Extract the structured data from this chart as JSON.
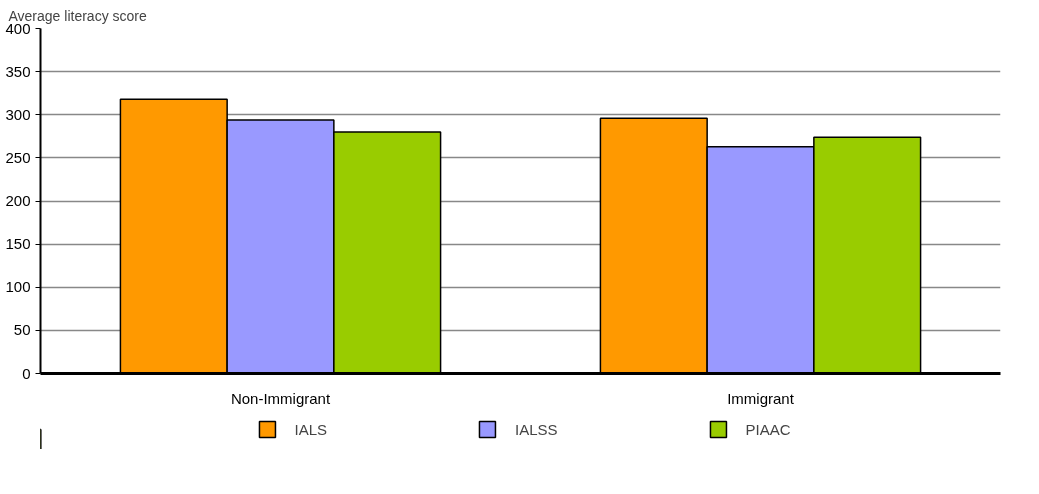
{
  "chart_data": {
    "type": "bar",
    "ylabel": "Average literacy score",
    "categories": [
      "Non-Immigrant",
      "Immigrant"
    ],
    "series": [
      {
        "name": "IALS",
        "color": "#ff9900",
        "values": [
          318,
          296
        ]
      },
      {
        "name": "IALSS",
        "color": "#9999ff",
        "values": [
          294,
          263
        ]
      },
      {
        "name": "PIAAC",
        "color": "#99cc00",
        "values": [
          280,
          274
        ]
      }
    ],
    "ylim": [
      0,
      400
    ],
    "yticks": [
      0,
      50,
      100,
      150,
      200,
      250,
      300,
      350,
      400
    ],
    "grid": "y",
    "legend": "bottom"
  }
}
